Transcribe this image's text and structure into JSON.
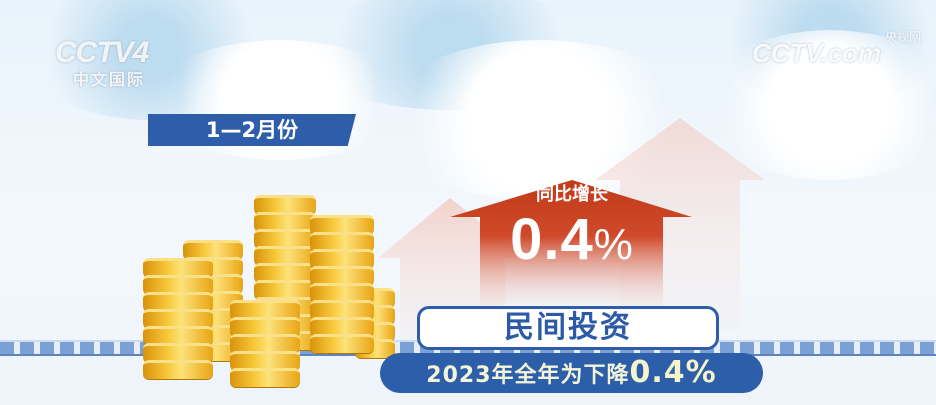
{
  "logo": {
    "channel": "CCTV4",
    "subtitle": "中文国际"
  },
  "watermark": {
    "text": "CCTV.com",
    "sub": "央视网"
  },
  "period_label": "1—2月份",
  "arrow": {
    "label": "同比增长",
    "value": "0.4",
    "unit": "%",
    "color": "#c6411f"
  },
  "title": "民间投资",
  "subtitle": {
    "prefix": "2023年全年为下降",
    "value": "0.4%"
  },
  "colors": {
    "brand_blue": "#2e5ea9",
    "gold": "#f2b51c",
    "red": "#c6411f"
  }
}
